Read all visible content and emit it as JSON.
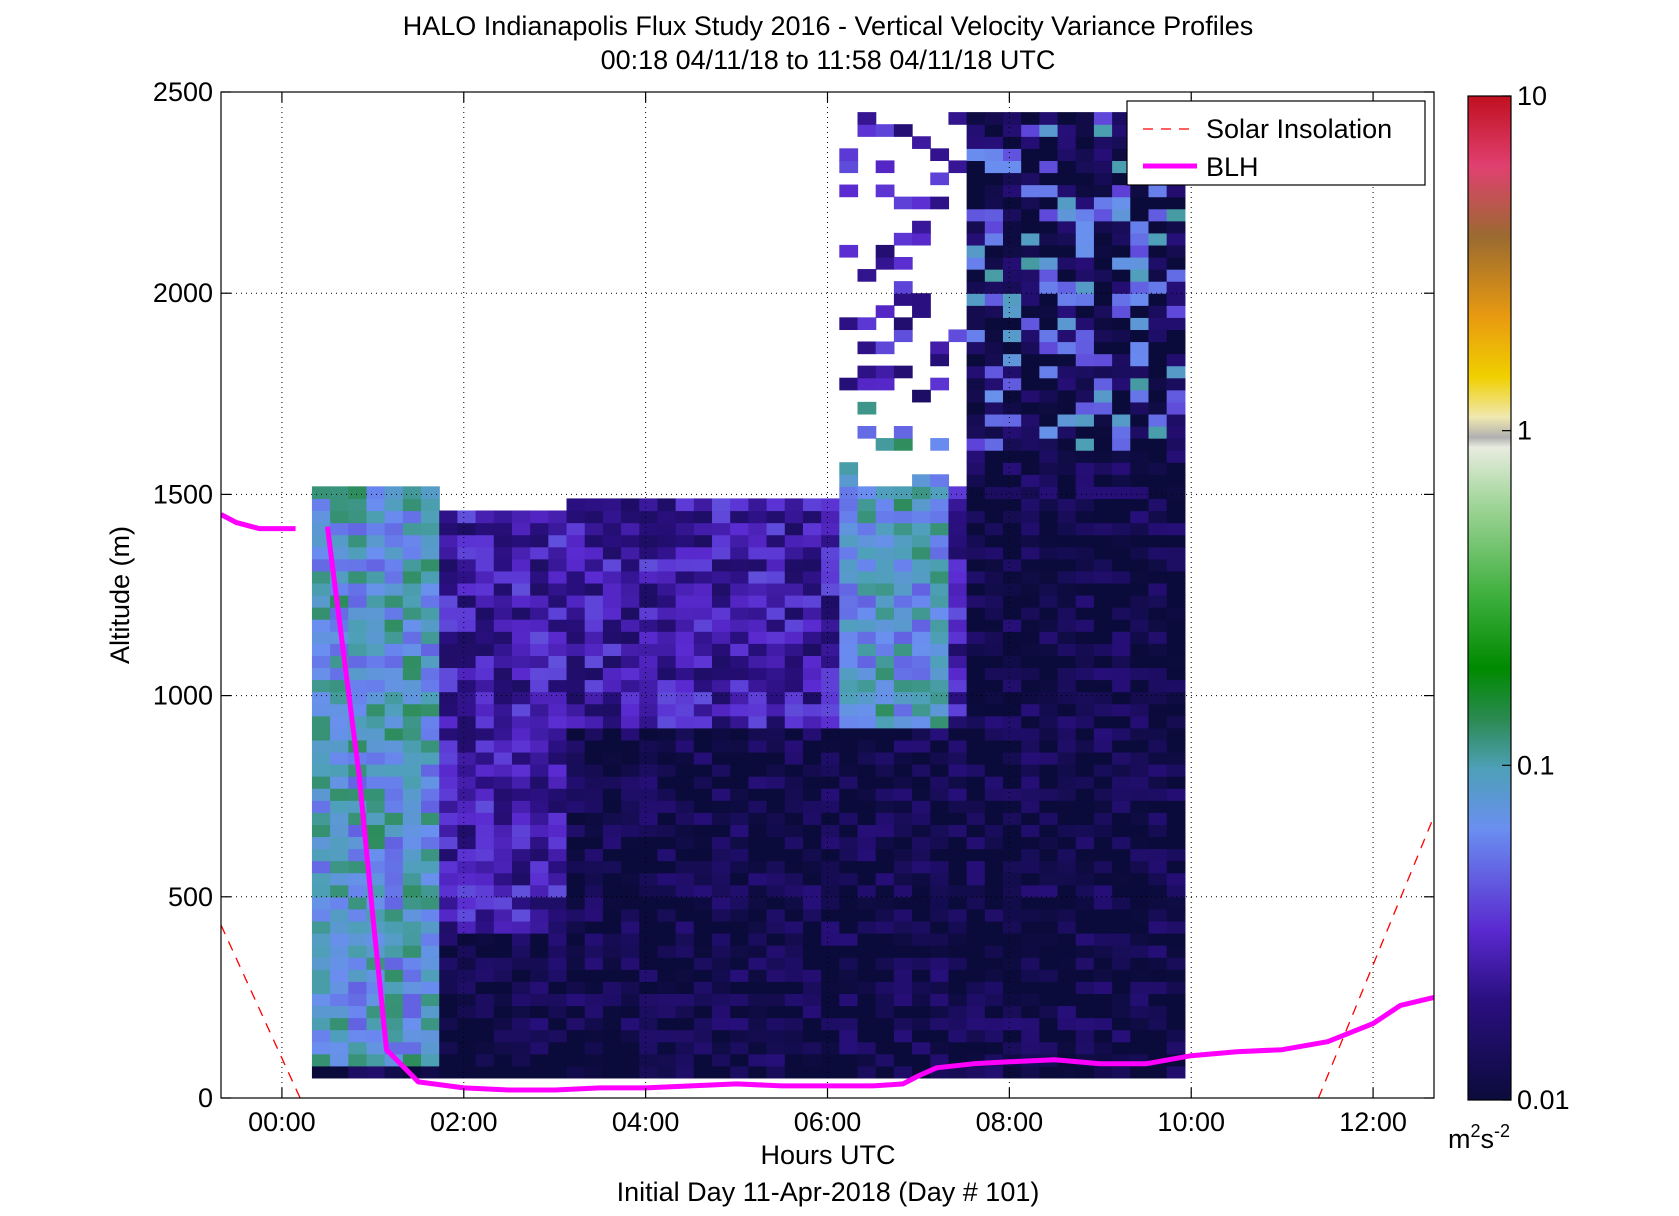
{
  "figure": {
    "title_line1": "HALO Indianapolis Flux Study 2016 - Vertical Velocity Variance Profiles",
    "title_line2": "00:18 04/11/18 to 11:58 04/11/18  UTC",
    "xlabel": "Hours UTC",
    "footer": "Initial Day 11-Apr-2018 (Day # 101)",
    "ylabel": "Altitude (m)",
    "colorbar_unit_base": "m",
    "colorbar_unit_exp1": "2",
    "colorbar_unit_mid": "s",
    "colorbar_unit_exp2": "-2"
  },
  "legend": {
    "items": [
      {
        "label": "Solar Insolation",
        "color": "#ff0000",
        "style": "dashed"
      },
      {
        "label": "BLH",
        "color": "#ff00ff",
        "style": "solid"
      }
    ],
    "placement": "top-right"
  },
  "chart_data": {
    "type": "heatmap",
    "title": "HALO Indianapolis Flux Study 2016 - Vertical Velocity Variance Profiles",
    "subtitle": "00:18 04/11/18 to 11:58 04/11/18  UTC",
    "xlabel": "Hours UTC",
    "ylabel": "Altitude (m)",
    "xlim": [
      -0.67,
      12.67
    ],
    "ylim": [
      0,
      2500
    ],
    "x_ticks": [
      0,
      2,
      4,
      6,
      8,
      10,
      12
    ],
    "x_tick_labels": [
      "00:00",
      "02:00",
      "04:00",
      "06:00",
      "08:00",
      "10:00",
      "12:00"
    ],
    "y_ticks": [
      0,
      500,
      1000,
      1500,
      2000,
      2500
    ],
    "y_tick_labels": [
      "0",
      "500",
      "1000",
      "1500",
      "2000",
      "2500"
    ],
    "grid": true,
    "colorbar": {
      "scale": "log",
      "range": [
        0.01,
        10
      ],
      "tick_values": [
        0.01,
        0.1,
        1,
        10
      ],
      "tick_labels": [
        "0.01",
        "0.1",
        "1",
        "10"
      ],
      "stops": [
        "#0b0b3b",
        "#2a0f80",
        "#5a2ad0",
        "#6a8ff0",
        "#4ea0b8",
        "#2a8a50",
        "#008a00",
        "#3cae3c",
        "#a8d8a0",
        "#e8ece0",
        "#b0b0b0",
        "#f0e8b0",
        "#f0d000",
        "#e89a10",
        "#9a6a30",
        "#e04070",
        "#c01020"
      ],
      "stop_positions": [
        0,
        0.1,
        0.17,
        0.27,
        0.33,
        0.38,
        0.43,
        0.5,
        0.6,
        0.65,
        0.66,
        0.68,
        0.72,
        0.78,
        0.86,
        0.93,
        1.0
      ]
    },
    "blh": {
      "name": "BLH",
      "color": "#ff00ff",
      "segments": [
        {
          "x": [
            -0.67,
            -0.5,
            -0.25,
            0.15
          ],
          "y": [
            1450,
            1430,
            1415,
            1415
          ]
        },
        {
          "x": [
            0.5,
            0.85,
            1.0,
            1.15,
            1.5,
            2.0,
            2.5,
            3.0,
            3.5,
            4.0,
            4.5,
            5.0,
            5.5,
            6.0,
            6.5,
            6.83,
            7.0,
            7.2,
            7.6,
            8.0,
            8.5,
            9.0,
            9.5,
            10.0,
            10.5,
            11.0,
            11.5,
            12.0,
            12.3,
            12.67
          ],
          "y": [
            1420,
            800,
            450,
            120,
            40,
            25,
            20,
            20,
            25,
            25,
            30,
            35,
            30,
            30,
            30,
            35,
            55,
            75,
            85,
            90,
            95,
            85,
            85,
            105,
            115,
            120,
            140,
            185,
            230,
            250
          ]
        }
      ]
    },
    "solar_insolation": {
      "name": "Solar Insolation",
      "color": "#ff0000",
      "segments": [
        {
          "x": [
            -0.67,
            0.2
          ],
          "y": [
            430,
            0
          ]
        },
        {
          "x": [
            11.4,
            12.67
          ],
          "y": [
            0,
            700
          ]
        }
      ]
    },
    "profiles": {
      "time_start": 0.33,
      "time_step": 0.2,
      "n_times": 48,
      "alt_start": 50,
      "alt_step": 30,
      "note_values": "log10 of vertical velocity variance (m^2 s^-2) per range gate; values generated to match visual pattern",
      "pattern_regions": [
        {
          "t": [
            0.33,
            1.6
          ],
          "alt": [
            50,
            1500
          ],
          "level": -1.1
        },
        {
          "t": [
            1.6,
            3.0
          ],
          "alt": [
            400,
            1400
          ],
          "level": -1.6
        },
        {
          "t": [
            3.0,
            7.0
          ],
          "alt": [
            50,
            800
          ],
          "level": -1.95
        },
        {
          "t": [
            6.0,
            7.3
          ],
          "alt": [
            900,
            1700
          ],
          "level": -1.1
        },
        {
          "t": [
            7.5,
            12.0
          ],
          "alt": [
            50,
            2450
          ],
          "level": -1.95
        },
        {
          "t": [
            11.4,
            12.0
          ],
          "alt": [
            50,
            250
          ],
          "level": -1.1
        }
      ]
    }
  }
}
